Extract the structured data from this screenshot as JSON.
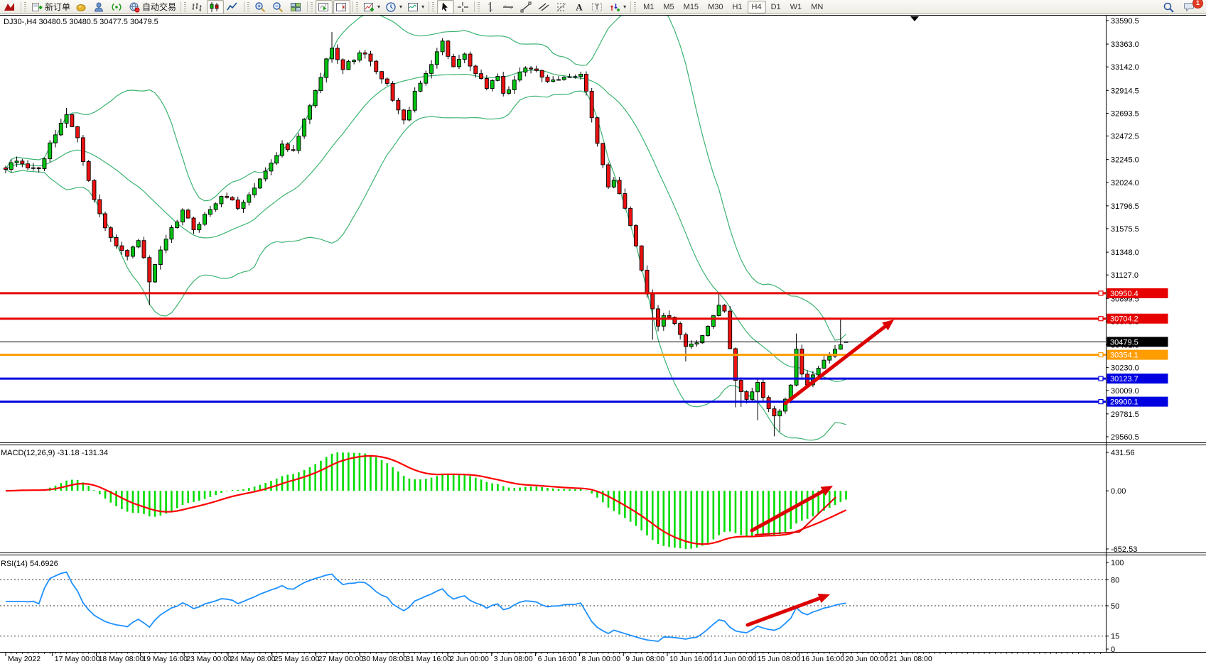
{
  "toolbar": {
    "new_order_label": "新订单",
    "autotrade_label": "自动交易",
    "notification_badge": "1",
    "active_timeframe": "H4",
    "timeframes": [
      "M1",
      "M5",
      "M15",
      "M30",
      "H1",
      "H4",
      "D1",
      "W1",
      "MN"
    ],
    "items": [
      {
        "icon": "app-logo"
      },
      {
        "sep": true
      },
      {
        "icon": "new-order",
        "label_key": "new_order_label"
      },
      {
        "icon": "price-alert"
      },
      {
        "icon": "profile"
      },
      {
        "icon": "news-signal"
      },
      {
        "icon": "autotrade",
        "label_key": "autotrade_label"
      },
      {
        "sep": true
      },
      {
        "icon": "bar-chart"
      },
      {
        "icon": "candlestick-chart",
        "active": true
      },
      {
        "icon": "line-chart"
      },
      {
        "sep": true
      },
      {
        "icon": "zoom-in"
      },
      {
        "icon": "zoom-out"
      },
      {
        "icon": "tile-windows"
      },
      {
        "sep": true
      },
      {
        "icon": "auto-scroll",
        "active": true
      },
      {
        "icon": "chart-shift",
        "active": true
      },
      {
        "sep": true
      },
      {
        "icon": "indicators",
        "caret": true
      },
      {
        "icon": "periods",
        "caret": true
      },
      {
        "icon": "templates",
        "caret": true
      },
      {
        "sep": true
      },
      {
        "icon": "cursor",
        "active": true
      },
      {
        "icon": "crosshair"
      },
      {
        "sep": true
      },
      {
        "icon": "vertical-line"
      },
      {
        "icon": "horizontal-line"
      },
      {
        "icon": "trendline"
      },
      {
        "icon": "equidistant-channel"
      },
      {
        "icon": "fibonacci"
      },
      {
        "icon": "text"
      },
      {
        "icon": "text-label"
      },
      {
        "icon": "arrows",
        "caret": true
      },
      {
        "sep": true
      }
    ]
  },
  "chart": {
    "title": "DJ30-,H4  30480.5 30480.5 30477.5 30479.5",
    "price_axis": [
      "33590.5",
      "33363.0",
      "33142.0",
      "32914.5",
      "32693.5",
      "32472.5",
      "32245.0",
      "32024.0",
      "31796.5",
      "31575.5",
      "31348.0",
      "31127.0",
      "30899.5",
      "30678.5",
      "30451.0",
      "30230.0",
      "30009.0",
      "29781.5",
      "29560.5"
    ],
    "time_axis": [
      "May 2022",
      "17 May 00:00",
      "18 May 08:00",
      "19 May 16:00",
      "23 May 00:00",
      "24 May 08:00",
      "25 May 16:00",
      "27 May 00:00",
      "30 May 08:00",
      "31 May 16:00",
      "2 Jun 00:00",
      "3 Jun 08:00",
      "6 Jun 16:00",
      "8 Jun 00:00",
      "9 Jun 08:00",
      "10 Jun 16:00",
      "14 Jun 00:00",
      "15 Jun 08:00",
      "16 Jun 16:00",
      "20 Jun 00:00",
      "21 Jun 08:00"
    ],
    "levels": [
      {
        "label": "30950.4",
        "value": 30950.4,
        "color": "#e60000"
      },
      {
        "label": "30704.2",
        "value": 30704.2,
        "color": "#e60000"
      },
      {
        "label": "30354.1",
        "value": 30354.1,
        "color": "#ff9c00"
      },
      {
        "label": "30123.7",
        "value": 30123.7,
        "color": "#0000e0"
      },
      {
        "label": "29900.1",
        "value": 29900.1,
        "color": "#0000e0"
      }
    ],
    "current_price": {
      "label": "30479.5",
      "value": 30479.5,
      "color": "#000000"
    }
  },
  "macd_pane": {
    "label": "MACD(12,26,9) -31.18 -131.34",
    "axis_max_label": "431.56",
    "axis_zero_label": "0.00",
    "axis_min_label": "-652.53",
    "axis_max": 431.56,
    "axis_min": -652.53
  },
  "rsi_pane": {
    "label": "RSI(14) 54.6926",
    "axis_labels": [
      "100",
      "80",
      "50",
      "15",
      "0"
    ],
    "axis_values": [
      100,
      80,
      50,
      15,
      0
    ],
    "dashed_levels": [
      80,
      50,
      15
    ]
  },
  "chart_data": {
    "type": "candlestick",
    "symbol": "DJ30-",
    "timeframe": "H4",
    "last_ohlc": {
      "open": 30480.5,
      "high": 30480.5,
      "low": 30477.5,
      "close": 30479.5
    },
    "bars": 153,
    "y_range": [
      29512.3,
      33638.7
    ],
    "close_waypoints": [
      [
        0,
        32150
      ],
      [
        2,
        32230
      ],
      [
        4,
        32170
      ],
      [
        6,
        32150
      ],
      [
        8,
        32380
      ],
      [
        10,
        32600
      ],
      [
        11,
        32690
      ],
      [
        13,
        32440
      ],
      [
        15,
        32050
      ],
      [
        16,
        31850
      ],
      [
        18,
        31600
      ],
      [
        20,
        31430
      ],
      [
        22,
        31300
      ],
      [
        24,
        31480
      ],
      [
        26,
        31060
      ],
      [
        28,
        31350
      ],
      [
        30,
        31560
      ],
      [
        32,
        31740
      ],
      [
        34,
        31580
      ],
      [
        36,
        31700
      ],
      [
        38,
        31830
      ],
      [
        40,
        31900
      ],
      [
        42,
        31780
      ],
      [
        44,
        31900
      ],
      [
        46,
        32050
      ],
      [
        48,
        32230
      ],
      [
        50,
        32380
      ],
      [
        52,
        32310
      ],
      [
        54,
        32620
      ],
      [
        56,
        32900
      ],
      [
        58,
        33200
      ],
      [
        59,
        33350
      ],
      [
        61,
        33120
      ],
      [
        63,
        33230
      ],
      [
        65,
        33280
      ],
      [
        67,
        33080
      ],
      [
        69,
        32960
      ],
      [
        71,
        32720
      ],
      [
        72,
        32610
      ],
      [
        74,
        32880
      ],
      [
        76,
        33080
      ],
      [
        78,
        33300
      ],
      [
        79,
        33380
      ],
      [
        81,
        33140
      ],
      [
        83,
        33240
      ],
      [
        85,
        33060
      ],
      [
        87,
        32950
      ],
      [
        89,
        33060
      ],
      [
        90,
        32880
      ],
      [
        92,
        32990
      ],
      [
        94,
        33140
      ],
      [
        96,
        33120
      ],
      [
        98,
        32980
      ],
      [
        100,
        33010
      ],
      [
        102,
        33060
      ],
      [
        104,
        33080
      ],
      [
        105,
        32900
      ],
      [
        107,
        32380
      ],
      [
        109,
        31980
      ],
      [
        110,
        32060
      ],
      [
        112,
        31790
      ],
      [
        114,
        31420
      ],
      [
        116,
        30960
      ],
      [
        118,
        30620
      ],
      [
        119,
        30750
      ],
      [
        121,
        30640
      ],
      [
        123,
        30420
      ],
      [
        125,
        30480
      ],
      [
        127,
        30640
      ],
      [
        129,
        30840
      ],
      [
        130,
        30760
      ],
      [
        132,
        30080
      ],
      [
        134,
        29940
      ],
      [
        136,
        30060
      ],
      [
        137,
        29920
      ],
      [
        139,
        29740
      ],
      [
        140,
        29800
      ],
      [
        141,
        29950
      ],
      [
        142,
        30050
      ],
      [
        143,
        30420
      ],
      [
        144,
        30150
      ],
      [
        145,
        30080
      ],
      [
        146,
        30160
      ],
      [
        147,
        30240
      ],
      [
        148,
        30280
      ],
      [
        150,
        30420
      ],
      [
        151,
        30450
      ],
      [
        152,
        30479.5
      ]
    ],
    "low_overrides": {
      "26": 30835,
      "117": 30500,
      "123": 30290,
      "132": 29845,
      "133": 29850,
      "136": 29720,
      "139": 29565,
      "140": 29610
    },
    "high_overrides": {
      "11": 32745,
      "59": 33480,
      "79": 33420,
      "129": 30945,
      "143": 30560,
      "151": 30700
    },
    "indicators": [
      {
        "name": "Bollinger Bands",
        "period": 20,
        "deviation": 2,
        "color": "#3cb371"
      },
      {
        "name": "MACD",
        "fast": 12,
        "slow": 26,
        "signal": 9,
        "histogram_color": "#00dd00",
        "signal_color": "#ff0000",
        "last_main": -31.18,
        "last_signal": -131.34,
        "scale_max": 431.56,
        "scale_min": -652.53
      },
      {
        "name": "RSI",
        "period": 14,
        "color": "#1e90ff",
        "last_value": 54.6926,
        "levels": [
          80,
          50,
          15
        ]
      }
    ],
    "horizontal_levels": [
      30950.4,
      30704.2,
      30354.1,
      30123.7,
      29900.1
    ],
    "trend_arrows": [
      {
        "pane": "price",
        "from": [
          1105,
          568
        ],
        "to": [
          1258,
          450
        ]
      },
      {
        "pane": "macd",
        "from": [
          1058,
          747
        ],
        "to": [
          1172,
          684
        ]
      },
      {
        "pane": "rsi",
        "from": [
          1052,
          880
        ],
        "to": [
          1168,
          837
        ]
      }
    ],
    "macd_swoosh": [
      [
        1062,
        753
      ],
      [
        1125,
        749
      ],
      [
        1176,
        700
      ]
    ]
  },
  "colors": {
    "candle_up": "#00c411",
    "candle_down": "#ee1111",
    "bollinger": "#3cb371",
    "macd_histogram": "#00dd00",
    "macd_signal": "#ff0000",
    "rsi_line": "#1e90ff",
    "trend_arrow": "#dd0000"
  }
}
